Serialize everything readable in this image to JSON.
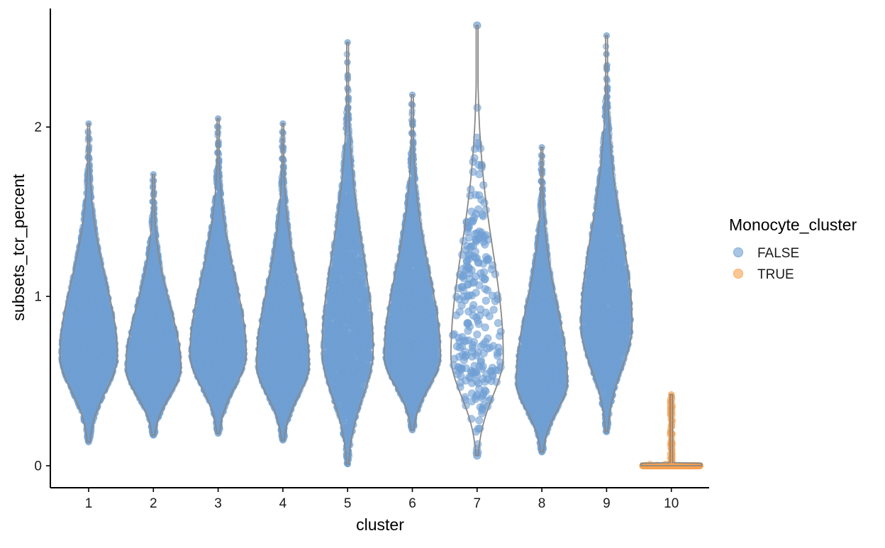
{
  "chart_data": {
    "type": "violin",
    "xlabel": "cluster",
    "ylabel": "subsets_tcr_percent",
    "ylim": [
      -0.13,
      2.7
    ],
    "yticks": [
      0,
      1,
      2
    ],
    "categories": [
      "1",
      "2",
      "3",
      "4",
      "5",
      "6",
      "7",
      "8",
      "9",
      "10"
    ],
    "legend": {
      "title": "Monocyte_cluster",
      "placement": "right",
      "items": [
        {
          "label": "FALSE",
          "color": "#6f9fd3"
        },
        {
          "label": "TRUE",
          "color": "#f9a14d"
        }
      ]
    },
    "outline_color": "#888888",
    "violins": [
      {
        "cluster": "1",
        "group": "FALSE",
        "min": 0.14,
        "max": 2.02,
        "median": 0.66,
        "mode": 0.65,
        "density_width": 0.9,
        "n_points": 4000
      },
      {
        "cluster": "2",
        "group": "FALSE",
        "min": 0.18,
        "max": 1.72,
        "median": 0.6,
        "mode": 0.58,
        "density_width": 0.86,
        "n_points": 3500
      },
      {
        "cluster": "3",
        "group": "FALSE",
        "min": 0.19,
        "max": 2.05,
        "median": 0.66,
        "mode": 0.66,
        "density_width": 0.88,
        "n_points": 4000
      },
      {
        "cluster": "4",
        "group": "FALSE",
        "min": 0.15,
        "max": 2.02,
        "median": 0.6,
        "mode": 0.6,
        "density_width": 0.82,
        "n_points": 3800
      },
      {
        "cluster": "5",
        "group": "FALSE",
        "min": 0.01,
        "max": 2.5,
        "median": 0.68,
        "mode": 0.68,
        "density_width": 0.8,
        "n_points": 3000
      },
      {
        "cluster": "6",
        "group": "FALSE",
        "min": 0.21,
        "max": 2.19,
        "median": 0.66,
        "mode": 0.65,
        "density_width": 0.88,
        "n_points": 3800
      },
      {
        "cluster": "7",
        "group": "FALSE",
        "min": 0.06,
        "max": 2.6,
        "median": 0.65,
        "mode": 0.65,
        "density_width": 0.82,
        "n_points": 260
      },
      {
        "cluster": "8",
        "group": "FALSE",
        "min": 0.08,
        "max": 1.88,
        "median": 0.52,
        "mode": 0.5,
        "density_width": 0.8,
        "n_points": 3300
      },
      {
        "cluster": "9",
        "group": "FALSE",
        "min": 0.2,
        "max": 2.54,
        "median": 0.85,
        "mode": 0.83,
        "density_width": 0.8,
        "n_points": 3600
      },
      {
        "cluster": "10",
        "group": "TRUE",
        "min": 0.0,
        "max": 0.42,
        "median": 0.0,
        "mode": 0.0,
        "density_width": 0.95,
        "n_points": 1200
      }
    ]
  }
}
